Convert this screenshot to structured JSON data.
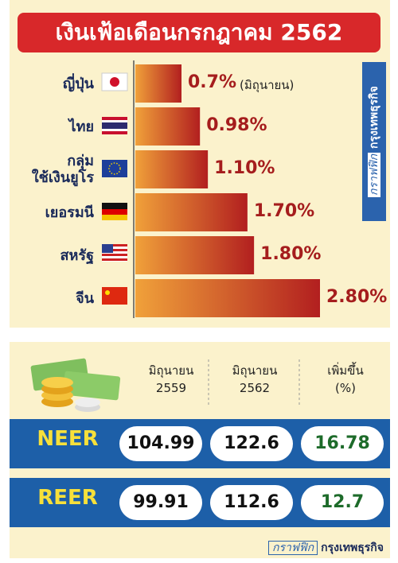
{
  "chart_data": {
    "type": "bar",
    "orientation": "horizontal",
    "title": "เงินเฟ้อเดือนกรกฎาคม 2562",
    "categories": [
      "ญี่ปุ่น",
      "ไทย",
      "กลุ่ม\nใช้เงินยูโร",
      "เยอรมนี",
      "สหรัฐ",
      "จีน"
    ],
    "values": [
      0.7,
      0.98,
      1.1,
      1.7,
      1.8,
      2.8
    ],
    "value_labels": [
      "0.7%",
      "0.98%",
      "1.10%",
      "1.70%",
      "1.80%",
      "2.80%"
    ],
    "annotation": "(มิถุนายน)",
    "colors": [
      "#f0a13a",
      "#b21f1f"
    ]
  },
  "table": {
    "headers": [
      "มิถุนายน\n2559",
      "มิถุนายน\n2562",
      "เพิ่มขึ้น\n(%)"
    ],
    "rows": [
      [
        "NEER",
        104.99,
        122.6,
        16.78
      ],
      [
        "REER",
        99.91,
        112.6,
        12.7
      ]
    ]
  },
  "credit": {
    "label": "กราฟฟิก",
    "source": "กรุงเทพธุรกิจ"
  }
}
